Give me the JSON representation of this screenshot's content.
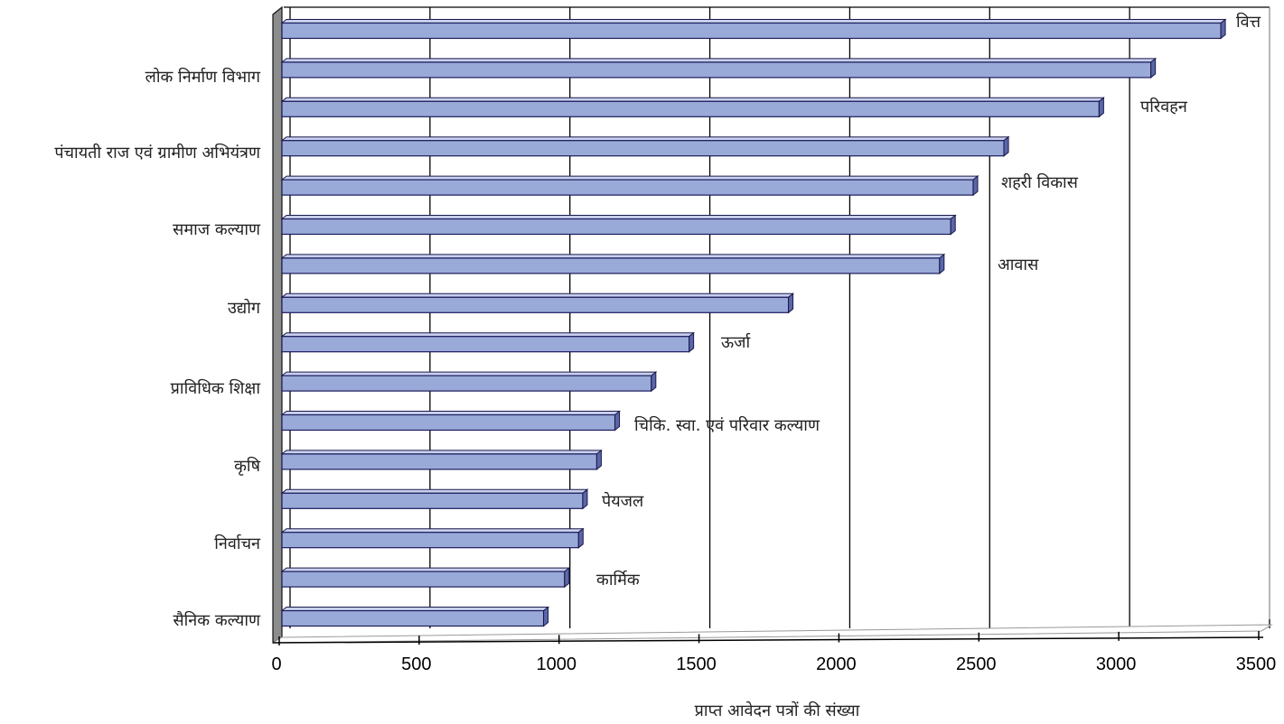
{
  "chart_data": {
    "type": "bar",
    "orientation": "horizontal",
    "xlabel": "प्राप्त  आवेदन पत्रों की संख्या",
    "ylabel": "",
    "title": "",
    "xlim": [
      0,
      3500
    ],
    "x_ticks": [
      "0",
      "500",
      "1000",
      "1500",
      "2000",
      "2500",
      "3000",
      "3500"
    ],
    "grid": "vertical",
    "legend": "none",
    "bar_color": "#9AAAD8",
    "bar_edge_color": "#1a1a5a",
    "categories": [
      "वित्त",
      "लोक निर्माण विभाग",
      "परिवहन",
      "पंचायती राज एवं ग्रामीण अभियंत्रण",
      "शहरी विकास",
      "समाज कल्याण",
      "आवास",
      "उद्योग",
      "ऊर्जा",
      "प्राविधिक शिक्षा",
      "चिकि. स्वा. एवं परिवार कल्याण",
      "कृषि",
      "पेयजल",
      "निर्वाचन",
      "कार्मिक",
      "सैनिक कल्याण"
    ],
    "values": [
      3355,
      3105,
      2920,
      2580,
      2470,
      2390,
      2350,
      1810,
      1455,
      1320,
      1190,
      1125,
      1075,
      1060,
      1010,
      935
    ],
    "label_side": [
      "right",
      "left",
      "right",
      "left",
      "right",
      "left",
      "right",
      "left",
      "right",
      "left",
      "right",
      "left",
      "right",
      "left",
      "right",
      "left"
    ]
  }
}
